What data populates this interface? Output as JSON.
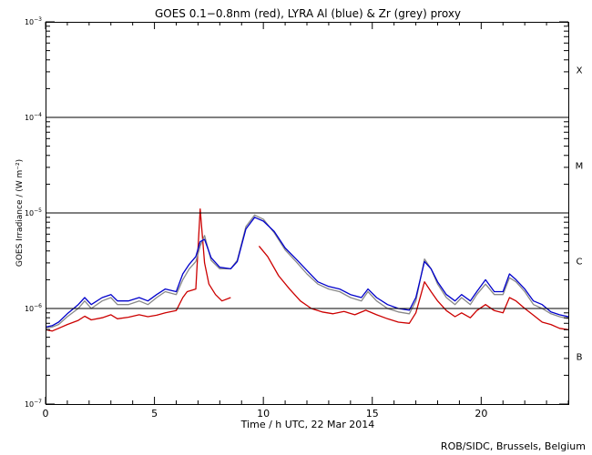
{
  "chart_data": {
    "type": "line",
    "title": "GOES 0.1−0.8nm (red), LYRA Al (blue) & Zr (grey) proxy",
    "xlabel": "Time / h UTC, 22 Mar 2014",
    "ylabel": "GOES Irradiance / (W m⁻²)",
    "xlim": [
      0,
      24
    ],
    "ylim": [
      1e-07,
      0.001
    ],
    "yscale": "log",
    "x_ticks": [
      0,
      5,
      10,
      15,
      20
    ],
    "y_ticks": [
      {
        "value": 1e-07,
        "base": "10",
        "exp": "−7"
      },
      {
        "value": 1e-06,
        "base": "10",
        "exp": "−6"
      },
      {
        "value": 1e-05,
        "base": "10",
        "exp": "−5"
      },
      {
        "value": 0.0001,
        "base": "10",
        "exp": "−4"
      },
      {
        "value": 0.001,
        "base": "10",
        "exp": "−3"
      }
    ],
    "flare_classes": [
      {
        "label": "X",
        "center": 0.000316
      },
      {
        "label": "M",
        "center": 3.16e-05
      },
      {
        "label": "C",
        "center": 3.16e-06
      },
      {
        "label": "B",
        "center": 3.16e-07
      }
    ],
    "threshold_lines": [
      1e-06,
      1e-05,
      0.0001
    ],
    "grid": false,
    "footer": "ROB/SIDC, Brussels, Belgium",
    "series": [
      {
        "color": "#cc0000",
        "points": [
          [
            0,
            6e-07
          ],
          [
            0.3,
            5.8e-07
          ],
          [
            0.6,
            6.2e-07
          ],
          [
            1.0,
            6.8e-07
          ],
          [
            1.5,
            7.5e-07
          ],
          [
            1.8,
            8.3e-07
          ],
          [
            2.1,
            7.6e-07
          ],
          [
            2.6,
            8e-07
          ],
          [
            3.0,
            8.6e-07
          ],
          [
            3.3,
            7.8e-07
          ],
          [
            3.8,
            8.1e-07
          ],
          [
            4.3,
            8.6e-07
          ],
          [
            4.7,
            8.2e-07
          ],
          [
            5.1,
            8.5e-07
          ],
          [
            5.5,
            9e-07
          ],
          [
            6.0,
            9.5e-07
          ],
          [
            6.3,
            1.3e-06
          ],
          [
            6.5,
            1.5e-06
          ],
          [
            6.9,
            1.6e-06
          ],
          [
            7.1,
            1.1e-05
          ],
          [
            7.3,
            3e-06
          ],
          [
            7.5,
            1.8e-06
          ],
          [
            7.8,
            1.4e-06
          ],
          [
            8.1,
            1.2e-06
          ],
          [
            8.5,
            1.3e-06
          ],
          null,
          [
            9.8,
            4.5e-06
          ],
          [
            10.2,
            3.5e-06
          ],
          [
            10.7,
            2.2e-06
          ],
          [
            11.2,
            1.6e-06
          ],
          [
            11.7,
            1.2e-06
          ],
          [
            12.2,
            1e-06
          ],
          [
            12.7,
            9.2e-07
          ],
          [
            13.2,
            8.8e-07
          ],
          [
            13.7,
            9.3e-07
          ],
          [
            14.2,
            8.6e-07
          ],
          [
            14.7,
            9.6e-07
          ],
          [
            15.2,
            8.6e-07
          ],
          [
            15.7,
            7.8e-07
          ],
          [
            16.2,
            7.2e-07
          ],
          [
            16.7,
            7e-07
          ],
          [
            17.0,
            9e-07
          ],
          [
            17.4,
            1.9e-06
          ],
          [
            17.7,
            1.5e-06
          ],
          [
            18.0,
            1.2e-06
          ],
          [
            18.4,
            9.5e-07
          ],
          [
            18.8,
            8.2e-07
          ],
          [
            19.1,
            9e-07
          ],
          [
            19.5,
            8e-07
          ],
          [
            19.8,
            9.5e-07
          ],
          [
            20.2,
            1.1e-06
          ],
          [
            20.6,
            9.5e-07
          ],
          [
            21.0,
            9e-07
          ],
          [
            21.3,
            1.3e-06
          ],
          [
            21.6,
            1.2e-06
          ],
          [
            22.0,
            1e-06
          ],
          [
            22.4,
            8.5e-07
          ],
          [
            22.8,
            7.2e-07
          ],
          [
            23.2,
            6.8e-07
          ],
          [
            23.6,
            6.2e-07
          ],
          [
            24,
            6e-07
          ]
        ]
      },
      {
        "color": "#888888",
        "points": [
          [
            0,
            6.2e-07
          ],
          [
            0.3,
            6.4e-07
          ],
          [
            0.6,
            6.8e-07
          ],
          [
            1.0,
            8.2e-07
          ],
          [
            1.5,
            1e-06
          ],
          [
            1.8,
            1.2e-06
          ],
          [
            2.1,
            1e-06
          ],
          [
            2.6,
            1.2e-06
          ],
          [
            3.0,
            1.3e-06
          ],
          [
            3.3,
            1.1e-06
          ],
          [
            3.8,
            1.1e-06
          ],
          [
            4.3,
            1.2e-06
          ],
          [
            4.7,
            1.1e-06
          ],
          [
            5.1,
            1.3e-06
          ],
          [
            5.5,
            1.5e-06
          ],
          [
            6.0,
            1.4e-06
          ],
          [
            6.3,
            2e-06
          ],
          [
            6.6,
            2.6e-06
          ],
          [
            6.9,
            3.1e-06
          ],
          [
            7.1,
            4.5e-06
          ],
          [
            7.3,
            5.8e-06
          ],
          [
            7.6,
            3.2e-06
          ],
          [
            8.0,
            2.6e-06
          ],
          [
            8.5,
            2.6e-06
          ],
          [
            8.8,
            3.2e-06
          ],
          [
            9.2,
            7.2e-06
          ],
          [
            9.6,
            9.5e-06
          ],
          [
            10.0,
            8.6e-06
          ],
          [
            10.5,
            6.2e-06
          ],
          [
            11.0,
            4.1e-06
          ],
          [
            11.5,
            3.1e-06
          ],
          [
            12.0,
            2.3e-06
          ],
          [
            12.5,
            1.8e-06
          ],
          [
            13.0,
            1.6e-06
          ],
          [
            13.5,
            1.5e-06
          ],
          [
            14.0,
            1.3e-06
          ],
          [
            14.5,
            1.2e-06
          ],
          [
            14.8,
            1.5e-06
          ],
          [
            15.2,
            1.2e-06
          ],
          [
            15.7,
            1e-06
          ],
          [
            16.2,
            9.2e-07
          ],
          [
            16.7,
            8.8e-07
          ],
          [
            17.0,
            1.2e-06
          ],
          [
            17.4,
            3.3e-06
          ],
          [
            17.7,
            2.6e-06
          ],
          [
            18.0,
            1.8e-06
          ],
          [
            18.4,
            1.3e-06
          ],
          [
            18.8,
            1.1e-06
          ],
          [
            19.1,
            1.3e-06
          ],
          [
            19.5,
            1.1e-06
          ],
          [
            19.8,
            1.4e-06
          ],
          [
            20.2,
            1.8e-06
          ],
          [
            20.6,
            1.4e-06
          ],
          [
            21.0,
            1.4e-06
          ],
          [
            21.3,
            2.1e-06
          ],
          [
            21.6,
            1.9e-06
          ],
          [
            22.0,
            1.5e-06
          ],
          [
            22.4,
            1.1e-06
          ],
          [
            22.8,
            1e-06
          ],
          [
            23.2,
            8.8e-07
          ],
          [
            23.6,
            8.2e-07
          ],
          [
            24,
            7.8e-07
          ]
        ]
      },
      {
        "color": "#0000cc",
        "points": [
          [
            0,
            6.4e-07
          ],
          [
            0.3,
            6.6e-07
          ],
          [
            0.6,
            7.2e-07
          ],
          [
            1.0,
            8.8e-07
          ],
          [
            1.5,
            1.1e-06
          ],
          [
            1.8,
            1.3e-06
          ],
          [
            2.1,
            1.1e-06
          ],
          [
            2.6,
            1.3e-06
          ],
          [
            3.0,
            1.4e-06
          ],
          [
            3.3,
            1.2e-06
          ],
          [
            3.8,
            1.2e-06
          ],
          [
            4.3,
            1.3e-06
          ],
          [
            4.7,
            1.2e-06
          ],
          [
            5.1,
            1.4e-06
          ],
          [
            5.5,
            1.6e-06
          ],
          [
            6.0,
            1.5e-06
          ],
          [
            6.3,
            2.3e-06
          ],
          [
            6.6,
            2.9e-06
          ],
          [
            6.9,
            3.5e-06
          ],
          [
            7.1,
            5e-06
          ],
          [
            7.3,
            5.3e-06
          ],
          [
            7.6,
            3.4e-06
          ],
          [
            8.0,
            2.7e-06
          ],
          [
            8.5,
            2.6e-06
          ],
          [
            8.8,
            3.1e-06
          ],
          [
            9.2,
            6.8e-06
          ],
          [
            9.6,
            9e-06
          ],
          [
            10.0,
            8.2e-06
          ],
          [
            10.5,
            6.4e-06
          ],
          [
            11.0,
            4.3e-06
          ],
          [
            11.5,
            3.3e-06
          ],
          [
            12.0,
            2.5e-06
          ],
          [
            12.5,
            1.9e-06
          ],
          [
            13.0,
            1.7e-06
          ],
          [
            13.5,
            1.6e-06
          ],
          [
            14.0,
            1.4e-06
          ],
          [
            14.5,
            1.3e-06
          ],
          [
            14.8,
            1.6e-06
          ],
          [
            15.2,
            1.3e-06
          ],
          [
            15.7,
            1.1e-06
          ],
          [
            16.2,
            1e-06
          ],
          [
            16.7,
            9.6e-07
          ],
          [
            17.0,
            1.3e-06
          ],
          [
            17.4,
            3.1e-06
          ],
          [
            17.7,
            2.6e-06
          ],
          [
            18.0,
            1.9e-06
          ],
          [
            18.4,
            1.4e-06
          ],
          [
            18.8,
            1.2e-06
          ],
          [
            19.1,
            1.4e-06
          ],
          [
            19.5,
            1.2e-06
          ],
          [
            19.8,
            1.5e-06
          ],
          [
            20.2,
            2e-06
          ],
          [
            20.6,
            1.5e-06
          ],
          [
            21.0,
            1.5e-06
          ],
          [
            21.3,
            2.3e-06
          ],
          [
            21.6,
            2e-06
          ],
          [
            22.0,
            1.6e-06
          ],
          [
            22.4,
            1.2e-06
          ],
          [
            22.8,
            1.1e-06
          ],
          [
            23.2,
            9.2e-07
          ],
          [
            23.6,
            8.6e-07
          ],
          [
            24,
            8.2e-07
          ]
        ]
      }
    ]
  }
}
